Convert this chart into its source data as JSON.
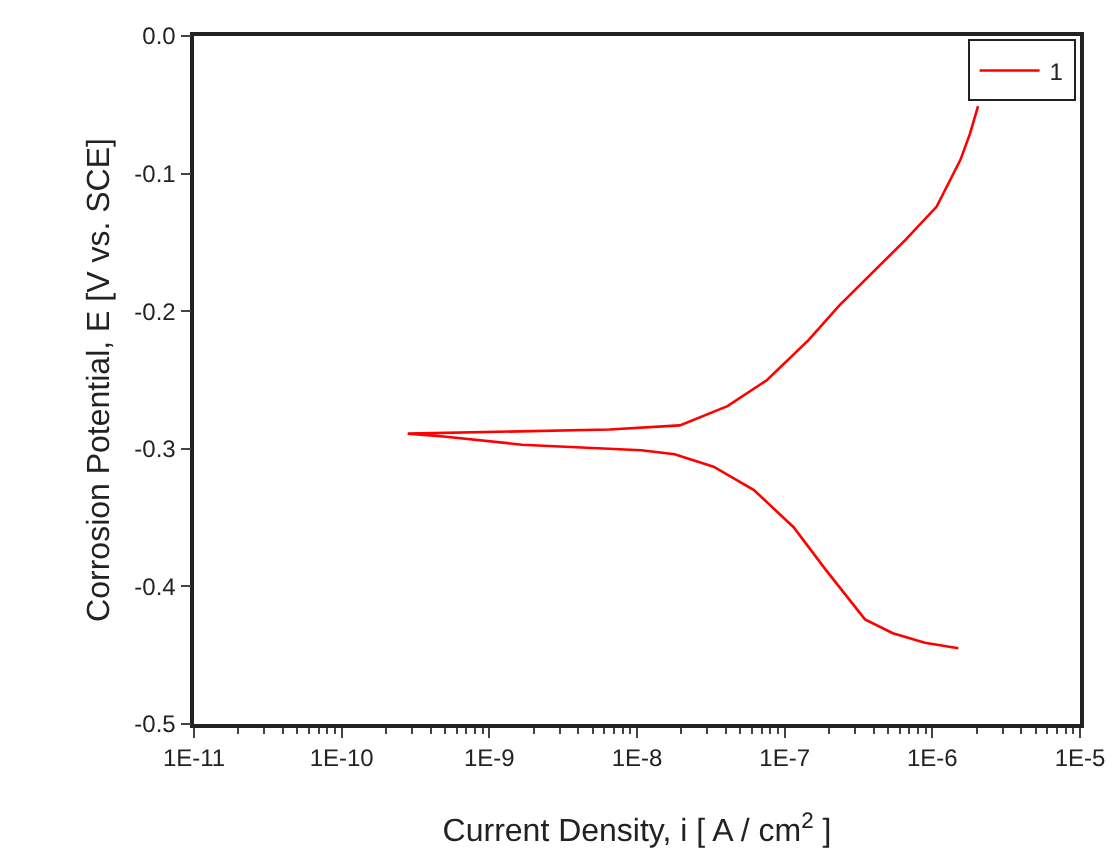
{
  "chart_data": {
    "type": "line",
    "xlabel": "Current Density, i [ A / cm$^{2}$ ]",
    "ylabel": "Corrosion Potential, E [V vs. SCE]",
    "log": "x",
    "grid": false,
    "legend": "top right",
    "marker": "none",
    "line_style": "solid",
    "xlim": [
      1e-11,
      1e-05
    ],
    "xticks": [
      {
        "value": 1e-11,
        "label": "1E-11"
      },
      {
        "value": 1e-10,
        "label": "1E-10"
      },
      {
        "value": 1e-09,
        "label": "1E-9"
      },
      {
        "value": 1e-08,
        "label": "1E-8"
      },
      {
        "value": 1e-07,
        "label": "1E-7"
      },
      {
        "value": 1e-06,
        "label": "1E-6"
      },
      {
        "value": 1e-05,
        "label": "1E-5"
      }
    ],
    "ylim": [
      -0.5,
      0
    ],
    "yticks": [
      -0.5,
      -0.4,
      -0.3,
      -0.2,
      -0.1,
      {
        "value": 0,
        "label": "0.0"
      }
    ],
    "series": [
      {
        "name": "1",
        "color": "#ff0000",
        "x": [
          1.5e-06,
          8.9e-07,
          5.4e-07,
          3.5e-07,
          1.9e-07,
          1.15e-07,
          6.2e-08,
          3.3e-08,
          1.8e-08,
          1.07e-08,
          1.66e-09,
          4.9e-10,
          2.8e-10,
          6.5e-09,
          1.95e-08,
          4.1e-08,
          7.6e-08,
          1.45e-07,
          2.34e-07,
          6.6e-07,
          1.07e-06,
          1.55e-06,
          1.8e-06,
          2.04e-06
        ],
        "values": [
          -0.445,
          -0.441,
          -0.434,
          -0.424,
          -0.388,
          -0.357,
          -0.33,
          -0.313,
          -0.304,
          -0.301,
          -0.297,
          -0.291,
          -0.289,
          -0.286,
          -0.283,
          -0.269,
          -0.25,
          -0.221,
          -0.196,
          -0.148,
          -0.124,
          -0.09,
          -0.071,
          -0.051
        ]
      }
    ]
  }
}
